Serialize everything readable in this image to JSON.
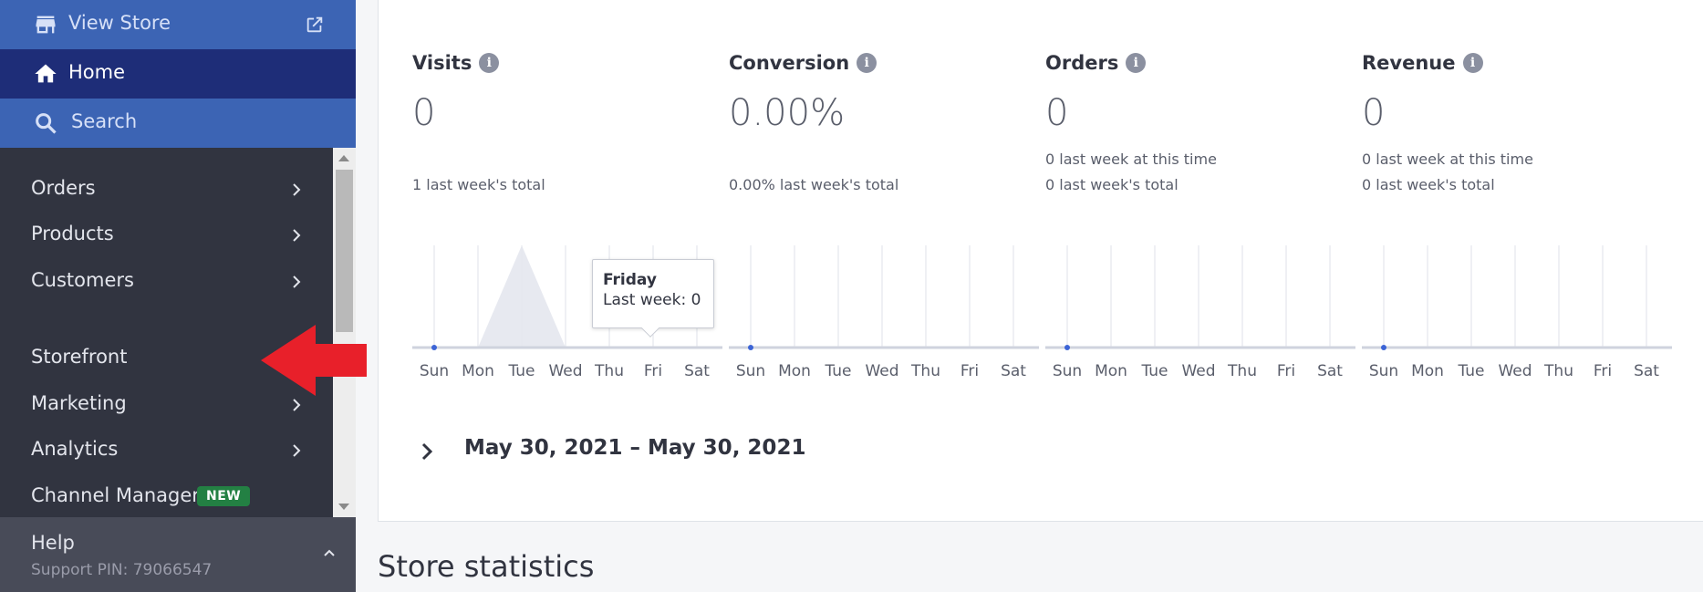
{
  "sidebar": {
    "view_store": "View Store",
    "home": "Home",
    "search": "Search",
    "items": [
      {
        "label": "Orders",
        "has_chevron": true
      },
      {
        "label": "Products",
        "has_chevron": true
      },
      {
        "label": "Customers",
        "has_chevron": true
      },
      {
        "label": "Storefront",
        "has_chevron": false
      },
      {
        "label": "Marketing",
        "has_chevron": true
      },
      {
        "label": "Analytics",
        "has_chevron": true
      },
      {
        "label": "Channel Manager",
        "has_chevron": false,
        "badge": "NEW"
      }
    ],
    "help": {
      "title": "Help",
      "pin": "Support PIN: 79066547"
    }
  },
  "metrics": [
    {
      "name": "Visits",
      "value": "0",
      "lines": [
        "1 last week's total"
      ]
    },
    {
      "name": "Conversion",
      "value": "0.00%",
      "lines": [
        "0.00% last week's total"
      ]
    },
    {
      "name": "Orders",
      "value": "0",
      "lines": [
        "0 last week at this time",
        "0 last week's total"
      ]
    },
    {
      "name": "Revenue",
      "value": "0",
      "lines": [
        "0 last week at this time",
        "0 last week's total"
      ]
    }
  ],
  "chart_data": [
    {
      "type": "area",
      "x": [
        "Sun",
        "Mon",
        "Tue",
        "Wed",
        "Thu",
        "Fri",
        "Sat"
      ],
      "series": [
        {
          "values": [
            0,
            0,
            0,
            0,
            0,
            0,
            0
          ]
        },
        {
          "values": [
            0,
            0,
            1,
            0,
            0,
            0,
            0
          ]
        }
      ]
    },
    {
      "type": "area",
      "x": [
        "Sun",
        "Mon",
        "Tue",
        "Wed",
        "Thu",
        "Fri",
        "Sat"
      ],
      "series": [
        {
          "values": [
            0,
            0,
            0,
            0,
            0,
            0,
            0
          ]
        }
      ]
    },
    {
      "type": "area",
      "x": [
        "Sun",
        "Mon",
        "Tue",
        "Wed",
        "Thu",
        "Fri",
        "Sat"
      ],
      "series": [
        {
          "values": [
            0,
            0,
            0,
            0,
            0,
            0,
            0
          ]
        }
      ]
    },
    {
      "type": "area",
      "x": [
        "Sun",
        "Mon",
        "Tue",
        "Wed",
        "Thu",
        "Fri",
        "Sat"
      ],
      "series": [
        {
          "values": [
            0,
            0,
            0,
            0,
            0,
            0,
            0
          ]
        }
      ]
    }
  ],
  "tooltip": {
    "day": "Friday",
    "text": "Last week: 0"
  },
  "date_range": "May 30, 2021 – May 30, 2021",
  "store_statistics": "Store statistics",
  "colors": {
    "sidebar_bg": "#313440",
    "nav_blue": "#3c64b4",
    "nav_active": "#1e2d78",
    "badge_green": "#238043",
    "arrow_red": "#e8202a",
    "point_blue": "#3c64d6"
  }
}
